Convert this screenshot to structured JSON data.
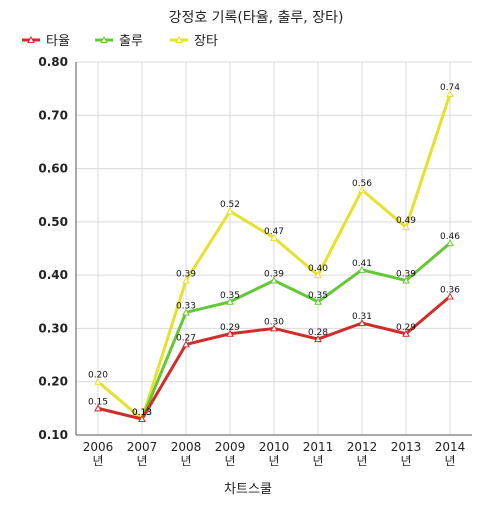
{
  "chart_data": {
    "type": "line",
    "title": "강정호 기록(타율, 출루, 장타)",
    "xlabel": "차트스쿨",
    "ylabel": "",
    "categories": [
      "2006\n년",
      "2007\n년",
      "2008\n년",
      "2009\n년",
      "2010\n년",
      "2011\n년",
      "2012\n년",
      "2013\n년",
      "2014\n년"
    ],
    "ylim": [
      0.1,
      0.8
    ],
    "yticks": [
      "0.10",
      "0.20",
      "0.30",
      "0.40",
      "0.50",
      "0.60",
      "0.70",
      "0.80"
    ],
    "grid": true,
    "legend": "top-left",
    "series": [
      {
        "name": "타율",
        "color": "#d42a2a",
        "values": [
          0.15,
          0.13,
          0.27,
          0.29,
          0.3,
          0.28,
          0.31,
          0.29,
          0.36
        ],
        "labels": [
          "0.15",
          "0.13",
          "0.27",
          "0.29",
          "0.30",
          "0.28",
          "0.31",
          "0.29",
          "0.36"
        ]
      },
      {
        "name": "출루",
        "color": "#62c934",
        "values": [
          0.15,
          0.13,
          0.33,
          0.35,
          0.39,
          0.35,
          0.41,
          0.39,
          0.46
        ],
        "labels": [
          "0.15",
          "0.13",
          "0.33",
          "0.35",
          "0.39",
          "0.35",
          "0.41",
          "0.39",
          "0.46"
        ]
      },
      {
        "name": "장타",
        "color": "#e6e12c",
        "values": [
          0.2,
          0.13,
          0.39,
          0.52,
          0.47,
          0.4,
          0.56,
          0.49,
          0.74
        ],
        "labels": [
          "0.20",
          "0.13",
          "0.39",
          "0.52",
          "0.47",
          "0.40",
          "0.56",
          "0.49",
          "0.74"
        ]
      }
    ]
  }
}
